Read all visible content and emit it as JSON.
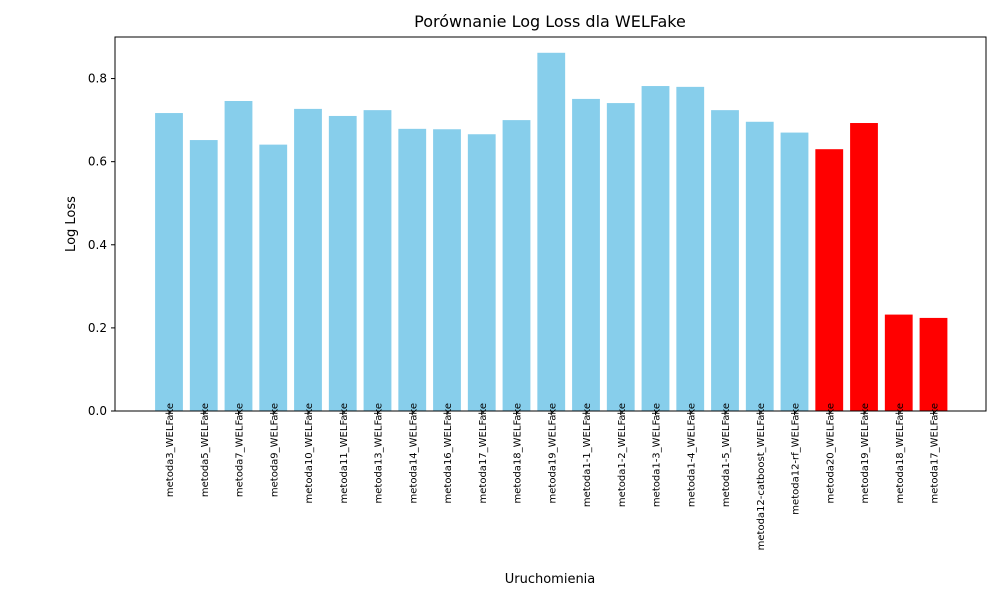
{
  "chart_data": {
    "type": "bar",
    "title": "Porównanie Log Loss dla WELFake",
    "xlabel": "Uruchomienia",
    "ylabel": "Log Loss",
    "ylim": [
      0,
      0.9
    ],
    "yticks": [
      0.0,
      0.2,
      0.4,
      0.6,
      0.8
    ],
    "ytick_labels": [
      "0.0",
      "0.2",
      "0.4",
      "0.6",
      "0.8"
    ],
    "grid": false,
    "categories": [
      "metoda3_WELFake",
      "metoda5_WELFake",
      "metoda7_WELFake",
      "metoda9_WELFake",
      "metoda10_WELFake",
      "metoda11_WELFake",
      "metoda13_WELFake",
      "metoda14_WELFake",
      "metoda16_WELFake",
      "metoda17_WELFake",
      "metoda18_WELFake",
      "metoda19_WELFake",
      "metoda1-1_WELFake",
      "metoda1-2_WELFake",
      "metoda1-3_WELFake",
      "metoda1-4_WELFake",
      "metoda1-5_WELFake",
      "metoda12-catboost_WELFake",
      "metoda12-rf_WELFake",
      "metoda20_WELFake",
      "metoda19_WELFake",
      "metoda18_WELFake",
      "metoda17_WELFake"
    ],
    "values": [
      0.717,
      0.652,
      0.746,
      0.641,
      0.727,
      0.71,
      0.724,
      0.679,
      0.678,
      0.666,
      0.7,
      0.862,
      0.751,
      0.741,
      0.782,
      0.78,
      0.724,
      0.696,
      0.67,
      0.63,
      0.693,
      0.232,
      0.224
    ],
    "colors": [
      "#87ceeb",
      "#87ceeb",
      "#87ceeb",
      "#87ceeb",
      "#87ceeb",
      "#87ceeb",
      "#87ceeb",
      "#87ceeb",
      "#87ceeb",
      "#87ceeb",
      "#87ceeb",
      "#87ceeb",
      "#87ceeb",
      "#87ceeb",
      "#87ceeb",
      "#87ceeb",
      "#87ceeb",
      "#87ceeb",
      "#87ceeb",
      "#ff0000",
      "#ff0000",
      "#ff0000",
      "#ff0000"
    ]
  }
}
